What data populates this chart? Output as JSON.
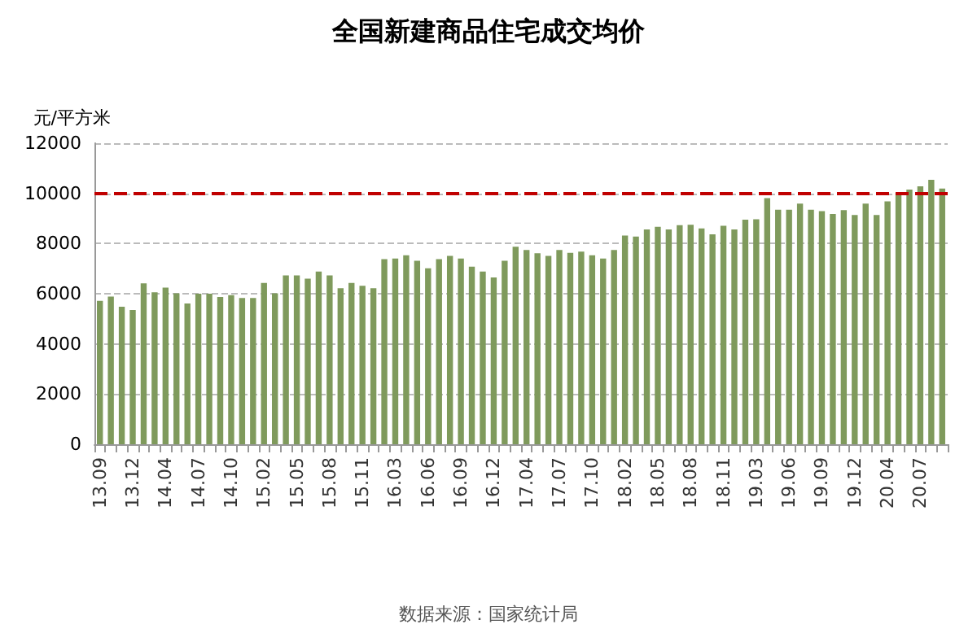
{
  "chart_data": {
    "type": "bar",
    "title": "全国新建商品住宅成交均价",
    "ylabel": "元/平方米",
    "categories": [
      "13.09",
      null,
      null,
      "13.12",
      null,
      null,
      "14.04",
      null,
      null,
      "14.07",
      null,
      null,
      "14.10",
      null,
      null,
      "15.02",
      null,
      null,
      "15.05",
      null,
      null,
      "15.08",
      null,
      null,
      "15.11",
      null,
      null,
      "16.03",
      null,
      null,
      "16.06",
      null,
      null,
      "16.09",
      null,
      null,
      "16.12",
      null,
      null,
      "17.04",
      null,
      null,
      "17.07",
      null,
      null,
      "17.10",
      null,
      null,
      "18.02",
      null,
      null,
      "18.05",
      null,
      null,
      "18.08",
      null,
      null,
      "18.11",
      null,
      null,
      "19.03",
      null,
      null,
      "19.06",
      null,
      null,
      "19.09",
      null,
      null,
      "19.12",
      null,
      null,
      "20.04",
      null,
      null,
      "20.07",
      null,
      null
    ],
    "values": [
      5720,
      5890,
      5480,
      5350,
      6410,
      6060,
      6240,
      6020,
      5610,
      6000,
      6000,
      5870,
      5940,
      5830,
      5830,
      6430,
      6020,
      6730,
      6730,
      6600,
      6880,
      6730,
      6220,
      6430,
      6320,
      6220,
      7380,
      7400,
      7530,
      7310,
      7010,
      7380,
      7510,
      7400,
      7080,
      6880,
      6650,
      7310,
      7870,
      7740,
      7610,
      7510,
      7740,
      7630,
      7680,
      7530,
      7400,
      7740,
      8320,
      8280,
      8560,
      8670,
      8560,
      8730,
      8750,
      8600,
      8370,
      8710,
      8560,
      8950,
      8970,
      9810,
      9350,
      9350,
      9590,
      9350,
      9290,
      9180,
      9330,
      9140,
      9590,
      9140,
      9680,
      10020,
      10150,
      10280,
      10540,
      10190
    ],
    "color": "#7f9a5c",
    "ylim": [
      0,
      12000
    ],
    "yticks": [
      0,
      2000,
      4000,
      6000,
      8000,
      10000,
      12000
    ],
    "grid": "y",
    "ref_lines": [
      {
        "axis": "y",
        "value": 10000,
        "color": "#c00000",
        "line_style": "dashed"
      }
    ],
    "annotations": [
      "数据来源：国家统计局"
    ]
  }
}
